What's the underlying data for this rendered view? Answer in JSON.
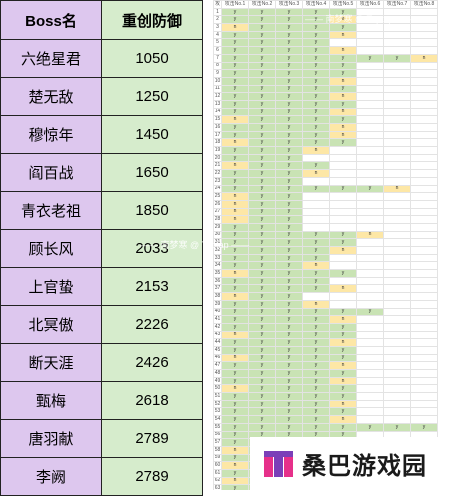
{
  "table": {
    "headers": {
      "name": "Boss名",
      "value": "重创防御"
    },
    "rows": [
      {
        "name": "六绝星君",
        "value": "1050"
      },
      {
        "name": "楚无敌",
        "value": "1250"
      },
      {
        "name": "穆惊年",
        "value": "1450"
      },
      {
        "name": "阎百战",
        "value": "1650"
      },
      {
        "name": "青衣老祖",
        "value": "1850"
      },
      {
        "name": "顾长风",
        "value": "2033"
      },
      {
        "name": "上官蛰",
        "value": "2153"
      },
      {
        "name": "北冥傲",
        "value": "2226"
      },
      {
        "name": "断天涯",
        "value": "2426"
      },
      {
        "name": "甄梅",
        "value": "2618"
      },
      {
        "name": "唐羽献",
        "value": "2789"
      },
      {
        "name": "李阙",
        "value": "2789"
      }
    ]
  },
  "grid": {
    "corner": "攻",
    "headers": [
      "攻击No.1",
      "攻击No.2",
      "攻击No.3",
      "攻击No.4",
      "攻击No.5",
      "攻击No.6",
      "攻击No.7",
      "攻击No.8"
    ],
    "rows": [
      "yyyyy",
      "yyyyn",
      "nyyyy",
      "yyyyn",
      "yyyy",
      "yyyyn",
      "yyyyyyyn",
      "yyyyy",
      "yyyyy",
      "yyyyn",
      "yyyyy",
      "yyyyn",
      "yyyyy",
      "yyyyn",
      "nyyyy",
      "yyyyn",
      "yyyyn",
      "nyyyy",
      "yyyn",
      "yyy",
      "nyyy",
      "yyyn",
      "yyy",
      "yyyyyyn",
      "nyy",
      "nyy",
      "nyy",
      "nyy",
      "yyy",
      "yyyyyn",
      "yyyyy",
      "yyyyn",
      "yyyy",
      "yyyn",
      "nyyyy",
      "yyyy",
      "yyyyn",
      "nyy",
      "yyyn",
      "yyyyyy",
      "yyyyn",
      "yyyyy",
      "nyyyy",
      "yyyyn",
      "yyyyy",
      "nyyyy",
      "yyyyn",
      "yyyyy",
      "yyyyn",
      "nyyyy",
      "yyyyy",
      "yyyyn",
      "yyyyy",
      "yyyyn",
      "yyyyyyyy",
      "yyyyy",
      "yyyy",
      "nyyy",
      "yyyy",
      "nyyy",
      "yyyy",
      "nyyy",
      "yyyy"
    ]
  },
  "watermark": {
    "top": "—— 南梦寒 @ Taptap ——",
    "middle": "—— 南梦寒 @ Taptap ——"
  },
  "logo": {
    "text": "桑巴游戏园",
    "color_primary": "#e6308a",
    "color_secondary": "#7b3fb8"
  }
}
